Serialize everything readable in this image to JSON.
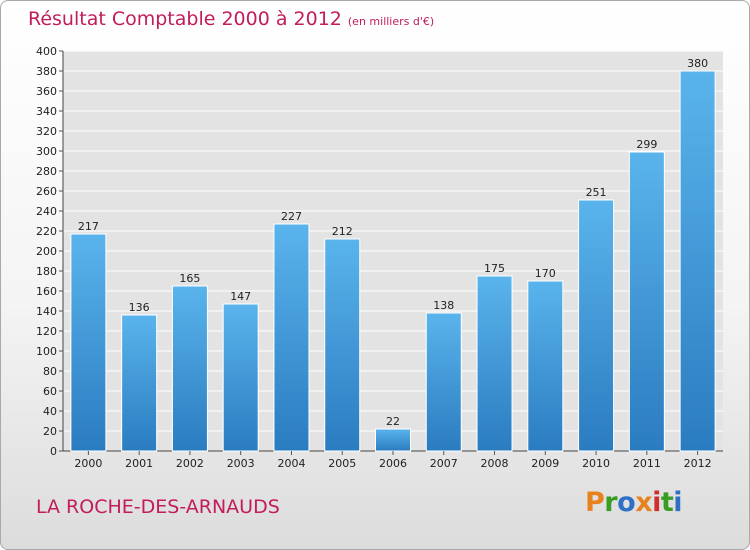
{
  "title": "Résultat Comptable 2000 à 2012",
  "subtitle": "(en milliers d'€)",
  "commune": "LA ROCHE-DES-ARNAUDS",
  "logo": {
    "letters": [
      "P",
      "r",
      "o",
      "x",
      "i",
      "t",
      "i"
    ],
    "colors": [
      "#e8821e",
      "#3a9d23",
      "#2f6fc4",
      "#e8821e",
      "#d12d2d",
      "#3a9d23",
      "#2f6fc4"
    ]
  },
  "colors": {
    "title": "#c21c5c",
    "bar_top": "#5ab4ec",
    "bar_bottom": "#2a7cc0"
  },
  "chart_data": {
    "type": "bar",
    "title": "Résultat Comptable 2000 à 2012",
    "subtitle": "(en milliers d'€)",
    "xlabel": "",
    "ylabel": "",
    "categories": [
      "2000",
      "2001",
      "2002",
      "2003",
      "2004",
      "2005",
      "2006",
      "2007",
      "2008",
      "2009",
      "2010",
      "2011",
      "2012"
    ],
    "values": [
      217,
      136,
      165,
      147,
      227,
      212,
      22,
      138,
      175,
      170,
      251,
      299,
      380
    ],
    "ylim": [
      0,
      400
    ],
    "ytick_step": 20,
    "grid": true,
    "legend": "none"
  }
}
